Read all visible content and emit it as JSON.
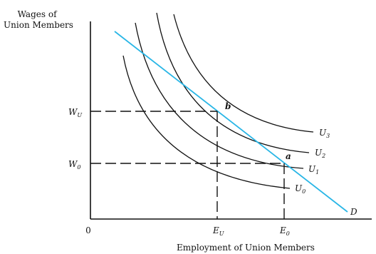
{
  "y_axis_label": [
    "Wages of",
    "Union Members"
  ],
  "x_axis_label": "Employment of Union Members",
  "origin_label": "0",
  "wage_levels": [
    {
      "main": "W",
      "sub": "U"
    },
    {
      "main": "W",
      "sub": "0"
    }
  ],
  "employment_levels": [
    {
      "main": "E",
      "sub": "U"
    },
    {
      "main": "E",
      "sub": "0"
    }
  ],
  "points": [
    "b",
    "a"
  ],
  "demand_curve": {
    "label": "D",
    "color": "#29b6e6"
  },
  "indifference_curves": [
    {
      "main": "U",
      "sub": "0"
    },
    {
      "main": "U",
      "sub": "1"
    },
    {
      "main": "U",
      "sub": "2"
    },
    {
      "main": "U",
      "sub": "3"
    }
  ]
}
